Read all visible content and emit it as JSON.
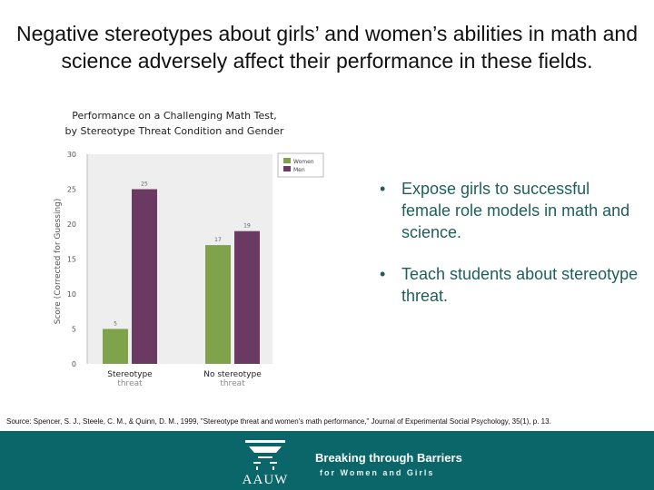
{
  "slide": {
    "title": "Negative stereotypes about girls’ and women’s abilities in math and science adversely affect their performance in these fields.",
    "bullets": [
      "Expose girls to successful female role models in math and science.",
      "Teach students about stereotype threat."
    ],
    "bullet_marker": "•",
    "source": "Source: Spencer, S. J., Steele, C. M., & Quinn, D. M., 1999, \"Stereotype threat and women's math performance,\" Journal of Experimental Social Psychology, 35(1), p. 13."
  },
  "footer": {
    "logo_text": "AAUW",
    "tagline_main": "Breaking through Barriers",
    "tagline_sub": "for Women and Girls",
    "background_color": "#0a6668"
  },
  "chart_data": {
    "type": "bar",
    "title_line1": "Performance on a Challenging Math Test,",
    "title_line2": "by Stereotype Threat Condition and Gender",
    "ylabel": "Score (Corrected for Guessing)",
    "ylim": [
      0,
      30
    ],
    "yticks": [
      0,
      5,
      10,
      15,
      20,
      25,
      30
    ],
    "categories": [
      {
        "line1": "Stereotype",
        "line2": "threat"
      },
      {
        "line1": "No stereotype",
        "line2": "threat"
      }
    ],
    "series": [
      {
        "name": "Women",
        "color": "#7ea34a",
        "values": [
          5,
          17
        ]
      },
      {
        "name": "Men",
        "color": "#6b3a63",
        "values": [
          25,
          19
        ]
      }
    ],
    "legend_position": "top-right",
    "grid": false
  }
}
